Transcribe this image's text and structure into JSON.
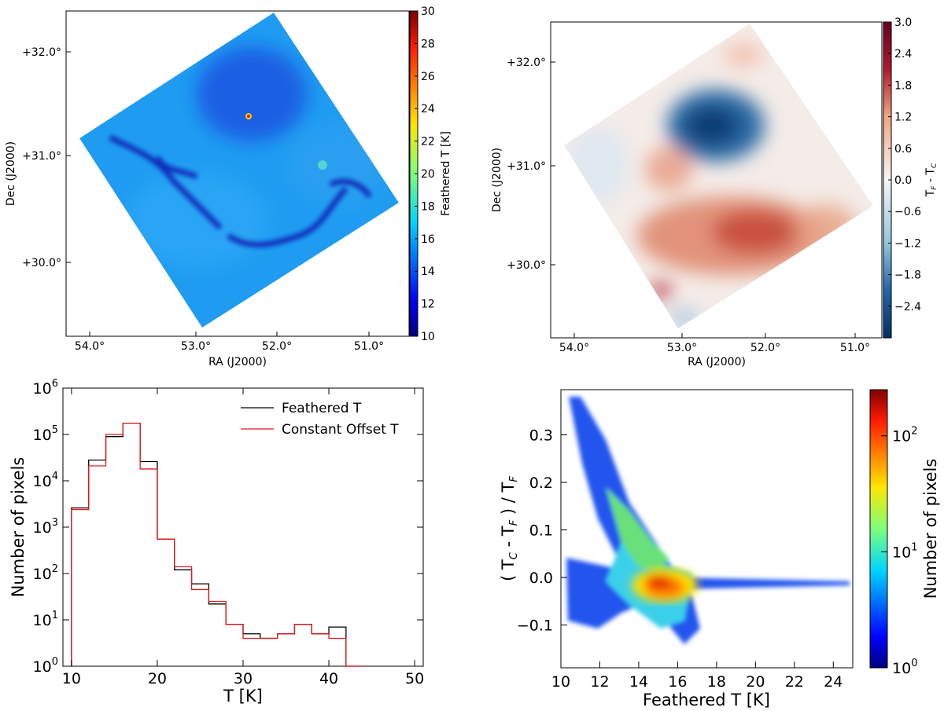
{
  "chart_data": [
    {
      "id": "p1",
      "type": "heatmap",
      "xlabel": "RA (J2000)",
      "ylabel": "Dec (J2000)",
      "x_ticks": [
        "54.0°",
        "53.0°",
        "52.0°",
        "51.0°"
      ],
      "y_ticks": [
        "+32.0°",
        "+31.0°",
        "+30.0°"
      ],
      "colorbar_label": "Feathered T [K]",
      "colorbar_ticks": [
        "10",
        "12",
        "14",
        "16",
        "18",
        "20",
        "22",
        "24",
        "26",
        "28",
        "30"
      ],
      "colormap": "jet",
      "clim": [
        10,
        30
      ]
    },
    {
      "id": "p2",
      "type": "heatmap",
      "xlabel": "RA (J2000)",
      "ylabel": "Dec (J2000)",
      "x_ticks": [
        "54.0°",
        "53.0°",
        "52.0°",
        "51.0°"
      ],
      "y_ticks": [
        "+32.0°",
        "+31.0°",
        "+30.0°"
      ],
      "colorbar_label": "T_F - T_C",
      "colorbar_ticks": [
        "−2.4",
        "−1.8",
        "−1.2",
        "−0.6",
        "0.0",
        "0.6",
        "1.2",
        "1.8",
        "2.4",
        "3.0"
      ],
      "colormap": "RdBu_r",
      "clim": [
        -3.0,
        3.0
      ]
    },
    {
      "id": "p3",
      "type": "line",
      "subtype": "step-histogram",
      "xlabel": "T [K]",
      "ylabel": "Number of pixels",
      "xlim": [
        9,
        51
      ],
      "ylim": [
        1,
        1000000
      ],
      "yscale": "log",
      "x_ticks": [
        10,
        20,
        30,
        40,
        50
      ],
      "y_ticks": [
        1,
        10,
        100,
        1000,
        10000,
        100000,
        1000000
      ],
      "legend_position": "top-right",
      "bin_edges": [
        10,
        12,
        14,
        16,
        18,
        20,
        22,
        24,
        26,
        28,
        30,
        32,
        34,
        36,
        38,
        40,
        42,
        44
      ],
      "series": [
        {
          "name": "Feathered T",
          "color": "#000000",
          "values": [
            2600,
            28000,
            90000,
            175000,
            26000,
            550,
            120,
            60,
            22,
            8,
            5,
            4,
            5,
            8,
            5,
            7,
            1,
            1
          ]
        },
        {
          "name": "Constant Offset T",
          "color": "#e41a1c",
          "values": [
            2400,
            21000,
            100000,
            175000,
            18000,
            550,
            140,
            45,
            25,
            8,
            4,
            4,
            5,
            8,
            5,
            4,
            1,
            1
          ]
        }
      ]
    },
    {
      "id": "p4",
      "type": "heatmap",
      "subtype": "2d-histogram",
      "xlabel": "Feathered T [K]",
      "ylabel": "( T_C - T_F ) / T_F",
      "xlim": [
        10,
        25
      ],
      "ylim": [
        -0.19,
        0.395
      ],
      "x_ticks": [
        10,
        12,
        14,
        16,
        18,
        20,
        22,
        24
      ],
      "y_ticks": [
        "−0.1",
        "0.0",
        "0.1",
        "0.2",
        "0.3"
      ],
      "colorbar_label": "Number of pixels",
      "colorbar_scale": "log",
      "colorbar_ticks": [
        "10^0",
        "10^1",
        "10^2"
      ],
      "colormap": "jet",
      "clim": [
        1,
        250
      ],
      "density_peak": {
        "x": 15.5,
        "y": 0.0
      }
    }
  ]
}
